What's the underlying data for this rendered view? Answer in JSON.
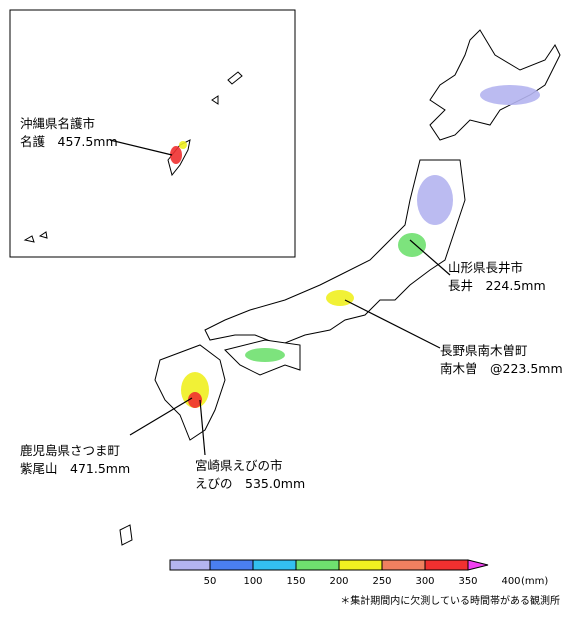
{
  "annotations": [
    {
      "place": "沖縄県名護市",
      "station": "名護　457.5mm"
    },
    {
      "place": "山形県長井市",
      "station": "長井　224.5mm"
    },
    {
      "place": "長野県南木曽町",
      "station": "南木曽　@223.5mm"
    },
    {
      "place": "鹿児島県さつま町",
      "station": "紫尾山　471.5mm"
    },
    {
      "place": "宮崎県えびの市",
      "station": "えびの　535.0mm"
    }
  ],
  "legend": {
    "ticks": [
      50,
      100,
      150,
      200,
      250,
      300,
      350,
      400
    ],
    "unit": "(mm)",
    "colors": [
      "#b4b4f0",
      "#4a7ff0",
      "#33c0f0",
      "#6fe06f",
      "#f0f020",
      "#f08060",
      "#f03030",
      "#f040f0"
    ]
  },
  "footnote": "＊集計期間内に欠測している時間帯がある観測所"
}
